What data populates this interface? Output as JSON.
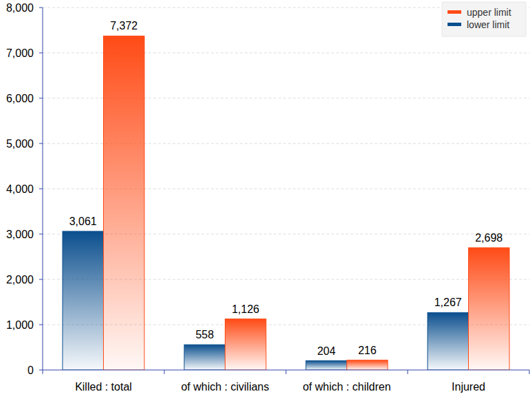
{
  "chart_data": {
    "type": "bar",
    "categories": [
      "Killed : total",
      "of which : civilians",
      "of which : children",
      "Injured"
    ],
    "series": [
      {
        "name": "lower limit",
        "color": "#0b4f8e",
        "values": [
          3061,
          558,
          204,
          1267
        ],
        "value_labels": [
          "3,061",
          "558",
          "204",
          "1,267"
        ]
      },
      {
        "name": "upper limit",
        "color": "#ff4b16",
        "values": [
          7372,
          1126,
          216,
          2698
        ],
        "value_labels": [
          "7,372",
          "1,126",
          "216",
          "2,698"
        ]
      }
    ],
    "ylim": [
      0,
      8000
    ],
    "yticks": [
      0,
      {
        "value": 1000,
        "label": "1,000"
      },
      {
        "value": 2000,
        "label": "2,000"
      },
      {
        "value": 3000,
        "label": "3,000"
      },
      {
        "value": 4000,
        "label": "4,000"
      },
      {
        "value": 5000,
        "label": "5,000"
      },
      {
        "value": 6000,
        "label": "6,000"
      },
      {
        "value": 7000,
        "label": "7,000"
      },
      {
        "value": 8000,
        "label": "8,000"
      }
    ],
    "grid": true,
    "legend": "top-right",
    "data_labels": true
  }
}
